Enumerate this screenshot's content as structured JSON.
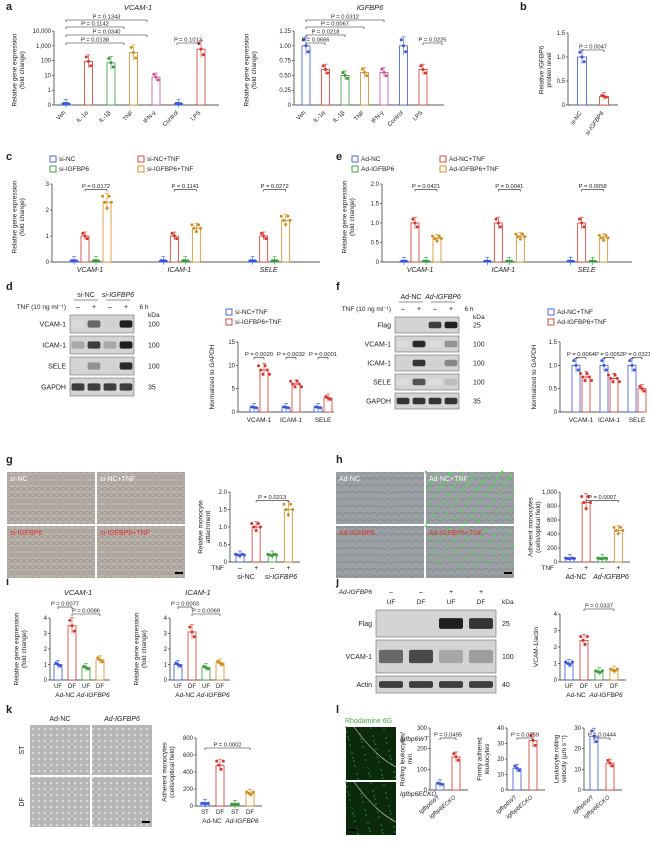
{
  "panel_letters": [
    "a",
    "b",
    "c",
    "d",
    "e",
    "f",
    "g",
    "h",
    "i",
    "j",
    "k",
    "l"
  ],
  "colors": {
    "red": "#d9342b",
    "blue": "#3a55d9",
    "green": "#3a9a3a",
    "orange": "#d38a1c",
    "pink": "#c94f9b",
    "grey": "#888888"
  },
  "panel_a": {
    "charts": [
      {
        "title": "VCAM-1",
        "ylabel": "Relative gene expression\n(fold change)",
        "yticks": [
          "0",
          "1",
          "10",
          "100",
          "1,000",
          "10,000"
        ],
        "categories": [
          "Veh",
          "IL-1α",
          "IL-1β",
          "TNF",
          "IFN-γ",
          "Control",
          "LPS"
        ],
        "pvalues": [
          "P = 0.1343",
          "P = 0.1142",
          "P = 0.0340",
          "P = 0.0138",
          "P = 0.1013"
        ]
      },
      {
        "title": "IGFBP6",
        "ylabel": "Relative gene expression\n(fold change)",
        "yticks": [
          "0",
          "0.25",
          "0.50",
          "0.75",
          "1.00",
          "1.25"
        ],
        "categories": [
          "Veh",
          "IL-1α",
          "IL-1β",
          "TNF",
          "IFN-γ",
          "Control",
          "LPS"
        ],
        "pvalues": [
          "P = 0.0312",
          "P = 0.0067",
          "P = 0.0218",
          "P = 0.0666",
          "P = 0.0225"
        ]
      }
    ]
  },
  "panel_b": {
    "ylabel": "Relative IGFBP6\nprotein level",
    "yticks": [
      "0",
      "0.5",
      "1.0",
      "1.5"
    ],
    "categories": [
      "si-NC",
      "si-IGFBP6"
    ],
    "pvalue": "P = 0.0047"
  },
  "panel_c": {
    "legend": [
      "si-NC",
      "si-NC+TNF",
      "si-IGFBP6",
      "si-IGFBP6+TNF"
    ],
    "ylabel": "Relative gene expression\n(fold change)",
    "yticks": [
      "0",
      "1",
      "2",
      "3"
    ],
    "groups": [
      "VCAM-1",
      "ICAM-1",
      "SELE"
    ],
    "pvalues": [
      "P = 0.0172",
      "P = 0.1141",
      "P = 0.0272"
    ]
  },
  "panel_e": {
    "legend": [
      "Ad-NC",
      "Ad-NC+TNF",
      "Ad-IGFBP6",
      "Ad-IGFBP6+TNF"
    ],
    "ylabel": "Relative gene expression\n(fold change)",
    "yticks": [
      "0",
      "0.5",
      "1.0",
      "1.5",
      "2.0"
    ],
    "groups": [
      "VCAM-1",
      "ICAM-1",
      "SELE"
    ],
    "pvalues": [
      "P = 0.0421",
      "P = 0.0041",
      "P = 0.0058"
    ]
  },
  "panel_d": {
    "col_headers": [
      "si-NC",
      "si-IGFBP6"
    ],
    "treatment_label": "TNF (10 ng ml⁻¹)",
    "time": "6 h",
    "signs": [
      "–",
      "+",
      "–",
      "+"
    ],
    "rows": [
      "VCAM-1",
      "ICAM-1",
      "SELE",
      "GAPDH"
    ],
    "kda_label": "kDa",
    "kda": [
      "100",
      "100",
      "100",
      "35"
    ],
    "legend": [
      "si-NC+TNF",
      "si-IGFBP6+TNF"
    ],
    "ylabel": "Normalized to GAPDH",
    "yticks": [
      "0",
      "5",
      "10",
      "15"
    ],
    "groups": [
      "VCAM-1",
      "ICAM-1",
      "SELE"
    ],
    "pvalues": [
      "P = 0.0020",
      "P = 0.0032",
      "P = 0.0001"
    ]
  },
  "panel_f": {
    "col_headers": [
      "Ad-NC",
      "Ad-IGFBP6"
    ],
    "treatment_label": "TNF (10 ng ml⁻¹)",
    "time": "6 h",
    "signs": [
      "–",
      "+",
      "–",
      "+"
    ],
    "rows": [
      "Flag",
      "VCAM-1",
      "ICAM-1",
      "SELE",
      "GAPDH"
    ],
    "kda_label": "kDa",
    "kda": [
      "25",
      "100",
      "100",
      "100",
      "35"
    ],
    "legend": [
      "Ad-NC+TNF",
      "Ad-IGFBP6+TNF"
    ],
    "ylabel": "Normalized to GAPDH",
    "yticks": [
      "0",
      "0.5",
      "1.0",
      "1.5"
    ],
    "groups": [
      "VCAM-1",
      "ICAM-1",
      "SELE"
    ],
    "pvalues": [
      "P = 0.0064",
      "P = 0.0052",
      "P = 0.0321"
    ]
  },
  "panel_g": {
    "image_labels": [
      "si-NC",
      "si-NC+TNF",
      "si-IGFBP6",
      "si-IGFBP6+TNF"
    ],
    "ylabel": "Relative monocyte\nattachment",
    "yticks": [
      "0",
      "0.5",
      "1.0",
      "1.5",
      "2.0"
    ],
    "tnf_label": "TNF",
    "signs": [
      "–",
      "+",
      "–",
      "+"
    ],
    "groups": [
      "si-NC",
      "si-IGFBP6"
    ],
    "pvalue": "P = 0.0213"
  },
  "panel_h": {
    "image_labels": [
      "Ad-NC",
      "Ad-NC+TNF",
      "Ad-IGFBP6",
      "Ad-IGFBP6+TNF"
    ],
    "ylabel": "Adherent monocytes\n(cells/optical field)",
    "yticks": [
      "0",
      "200",
      "400",
      "600",
      "800",
      "1,000"
    ],
    "tnf_label": "TNF",
    "signs": [
      "–",
      "+",
      "–",
      "+"
    ],
    "groups": [
      "Ad-NC",
      "Ad-IGFBP6"
    ],
    "pvalue": "P = 0.0007"
  },
  "panel_i": {
    "charts": [
      {
        "title": "VCAM-1",
        "ylabel": "Relative gene expression\n(fold change)",
        "yticks": [
          "0",
          "1",
          "2",
          "3",
          "4"
        ],
        "sub": [
          "UF",
          "DF",
          "UF",
          "DF"
        ],
        "groups": [
          "Ad-NC",
          "Ad-IGFBP6"
        ],
        "pvalues": [
          "P = 0.0077",
          "P = 0.0086"
        ]
      },
      {
        "title": "ICAM-1",
        "ylabel": "Relative gene expression\n(fold change)",
        "yticks": [
          "0",
          "1",
          "2",
          "3",
          "4"
        ],
        "sub": [
          "UF",
          "DF",
          "UF",
          "DF"
        ],
        "groups": [
          "Ad-NC",
          "Ad-IGFBP6"
        ],
        "pvalues": [
          "P = 0.0003",
          "P = 0.0069"
        ]
      }
    ]
  },
  "panel_j": {
    "treatment_label": "Ad-IGFBP6",
    "col_headers": [
      "UF",
      "DF",
      "UF",
      "DF"
    ],
    "signs": [
      "–",
      "–",
      "+",
      "+"
    ],
    "rows": [
      "Flag",
      "VCAM-1",
      "Actin"
    ],
    "kda_label": "kDa",
    "kda": [
      "25",
      "100",
      "40"
    ],
    "ylabel": "VCAM-1/actin",
    "yticks": [
      "0",
      "1",
      "2",
      "3",
      "4"
    ],
    "sub": [
      "UF",
      "DF",
      "UF",
      "DF"
    ],
    "groups": [
      "Ad-NC",
      "Ad-IGFBP6"
    ],
    "pvalue": "P = 0.0337"
  },
  "panel_k": {
    "col_headers": [
      "Ad-NC",
      "Ad-IGFBP6"
    ],
    "row_headers": [
      "ST",
      "DF"
    ],
    "ylabel": "Adherent monocytes\n(cells/optical field)",
    "yticks": [
      "0",
      "200",
      "400",
      "600",
      "800"
    ],
    "sub": [
      "ST",
      "DF",
      "ST",
      "DF"
    ],
    "groups": [
      "Ad-NC",
      "Ad-IGFBP6"
    ],
    "pvalue": "P = 0.0002"
  },
  "panel_l": {
    "stain_label": "Rhodamine 6G",
    "row_labels": [
      "Igfbp6WT",
      "Igfbp6ECKO"
    ],
    "charts": [
      {
        "ylabel": "Rolling leukocytes/\nmin",
        "yticks": [
          "0",
          "100",
          "200",
          "300"
        ],
        "categories": [
          "Igfbp6WT",
          "Igfbp6ECKO"
        ],
        "pvalue": "P = 0.0495"
      },
      {
        "ylabel": "Firmly adhered\nleukocytes",
        "yticks": [
          "0",
          "10",
          "20",
          "30",
          "40"
        ],
        "categories": [
          "Igfbp6WT",
          "Igfbp6ECKO"
        ],
        "pvalue": "P = 0.0259"
      },
      {
        "ylabel": "Leukocyte rolling\nvelocity (µm s⁻¹)",
        "yticks": [
          "0",
          "10",
          "20",
          "30"
        ],
        "categories": [
          "Igfbp6WT",
          "Igfbp6ECKO"
        ],
        "pvalue": "P = 0.0444"
      }
    ]
  },
  "chart_data": [
    {
      "type": "bar",
      "panel": "a-left",
      "title": "VCAM-1",
      "categories": [
        "Veh",
        "IL-1α",
        "IL-1β",
        "TNF",
        "IFN-γ",
        "Control",
        "LPS"
      ],
      "values": [
        1,
        100,
        80,
        400,
        8,
        1,
        700
      ],
      "ylim": [
        0,
        10000
      ],
      "scale": "log"
    },
    {
      "type": "bar",
      "panel": "a-right",
      "title": "IGFBP6",
      "categories": [
        "Veh",
        "IL-1α",
        "IL-1β",
        "TNF",
        "IFN-γ",
        "Control",
        "LPS"
      ],
      "values": [
        1.0,
        0.6,
        0.5,
        0.55,
        0.55,
        1.0,
        0.6
      ],
      "ylim": [
        0,
        1.25
      ]
    },
    {
      "type": "bar",
      "panel": "b",
      "categories": [
        "si-NC",
        "si-IGFBP6"
      ],
      "values": [
        1.0,
        0.18
      ],
      "ylim": [
        0,
        1.5
      ]
    },
    {
      "type": "bar",
      "panel": "c",
      "categories": [
        "VCAM-1",
        "ICAM-1",
        "SELE"
      ],
      "series": [
        {
          "name": "si-NC",
          "values": [
            0.05,
            0.05,
            0.05
          ]
        },
        {
          "name": "si-NC+TNF",
          "values": [
            1.0,
            1.0,
            1.0
          ]
        },
        {
          "name": "si-IGFBP6",
          "values": [
            0.05,
            0.05,
            0.05
          ]
        },
        {
          "name": "si-IGFBP6+TNF",
          "values": [
            2.3,
            1.3,
            1.6
          ]
        }
      ],
      "ylim": [
        0,
        3
      ]
    },
    {
      "type": "bar",
      "panel": "e",
      "categories": [
        "VCAM-1",
        "ICAM-1",
        "SELE"
      ],
      "series": [
        {
          "name": "Ad-NC",
          "values": [
            0.02,
            0.02,
            0.02
          ]
        },
        {
          "name": "Ad-NC+TNF",
          "values": [
            1.0,
            1.0,
            1.0
          ]
        },
        {
          "name": "Ad-IGFBP6",
          "values": [
            0.02,
            0.02,
            0.02
          ]
        },
        {
          "name": "Ad-IGFBP6+TNF",
          "values": [
            0.6,
            0.65,
            0.62
          ]
        }
      ],
      "ylim": [
        0,
        2
      ]
    },
    {
      "type": "bar",
      "panel": "d",
      "categories": [
        "VCAM-1",
        "ICAM-1",
        "SELE"
      ],
      "series": [
        {
          "name": "si-NC+TNF",
          "values": [
            1,
            1,
            1
          ]
        },
        {
          "name": "si-IGFBP6+TNF",
          "values": [
            9,
            6,
            3
          ]
        }
      ],
      "ylim": [
        0,
        15
      ]
    },
    {
      "type": "bar",
      "panel": "f",
      "categories": [
        "VCAM-1",
        "ICAM-1",
        "SELE"
      ],
      "series": [
        {
          "name": "Ad-NC+TNF",
          "values": [
            1,
            1,
            1
          ]
        },
        {
          "name": "Ad-IGFBP6+TNF",
          "values": [
            0.75,
            0.72,
            0.5
          ]
        }
      ],
      "ylim": [
        0,
        1.5
      ]
    },
    {
      "type": "bar",
      "panel": "g",
      "categories": [
        "si-NC –",
        "si-NC +",
        "si-IGFBP6 –",
        "si-IGFBP6 +"
      ],
      "values": [
        0.2,
        1.0,
        0.2,
        1.5
      ],
      "ylim": [
        0,
        2
      ]
    },
    {
      "type": "bar",
      "panel": "h",
      "categories": [
        "Ad-NC –",
        "Ad-NC +",
        "Ad-IGFBP6 –",
        "Ad-IGFBP6 +"
      ],
      "values": [
        50,
        850,
        50,
        450
      ],
      "ylim": [
        0,
        1000
      ]
    },
    {
      "type": "bar",
      "panel": "i-left",
      "title": "VCAM-1",
      "categories": [
        "UF",
        "DF",
        "UF",
        "DF"
      ],
      "values": [
        1,
        3.5,
        0.8,
        1.3
      ],
      "ylim": [
        0,
        4
      ]
    },
    {
      "type": "bar",
      "panel": "i-right",
      "title": "ICAM-1",
      "categories": [
        "UF",
        "DF",
        "UF",
        "DF"
      ],
      "values": [
        1,
        3.1,
        0.8,
        1.1
      ],
      "ylim": [
        0,
        4
      ]
    },
    {
      "type": "bar",
      "panel": "j",
      "categories": [
        "UF",
        "DF",
        "UF",
        "DF"
      ],
      "values": [
        1,
        2.4,
        0.5,
        0.6
      ],
      "ylim": [
        0,
        4
      ]
    },
    {
      "type": "bar",
      "panel": "k",
      "categories": [
        "ST",
        "DF",
        "ST",
        "DF"
      ],
      "values": [
        30,
        480,
        20,
        150
      ],
      "ylim": [
        0,
        800
      ]
    },
    {
      "type": "bar",
      "panel": "l-1",
      "categories": [
        "Igfbp6WT",
        "Igfbp6ECKO"
      ],
      "values": [
        30,
        160
      ],
      "ylim": [
        0,
        300
      ]
    },
    {
      "type": "bar",
      "panel": "l-2",
      "categories": [
        "Igfbp6WT",
        "Igfbp6ECKO"
      ],
      "values": [
        14,
        32
      ],
      "ylim": [
        0,
        40
      ]
    },
    {
      "type": "bar",
      "panel": "l-3",
      "categories": [
        "Igfbp6WT",
        "Igfbp6ECKO"
      ],
      "values": [
        26,
        13
      ],
      "ylim": [
        0,
        30
      ]
    }
  ]
}
